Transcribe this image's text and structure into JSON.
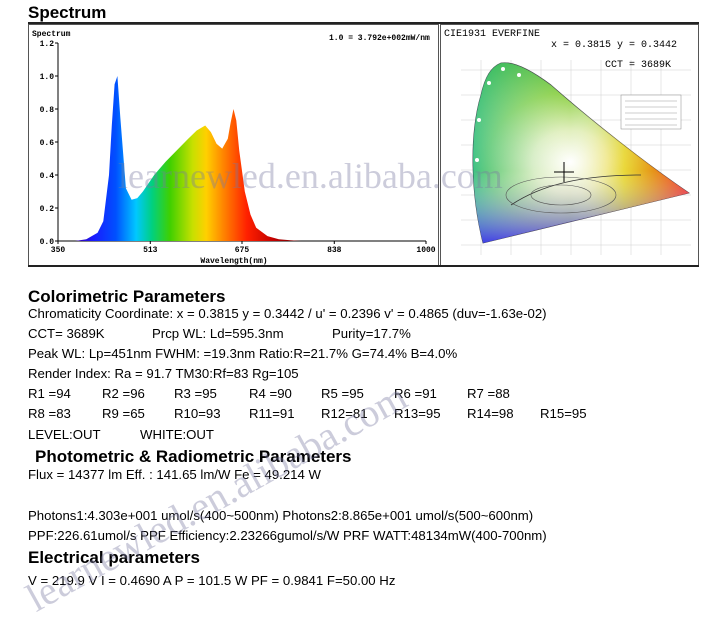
{
  "section_titles": {
    "spectrum": "Spectrum",
    "colorimetric": "Colorimetric Parameters",
    "photometric": "Photometric & Radiometric Parameters",
    "electrical": "Electrical parameters"
  },
  "chart_data": [
    {
      "type": "line",
      "title": "Spectrum",
      "annotation": "1.0 = 3.792e+002mW/nm",
      "xlabel": "Wavelength(nm)",
      "ylabel": "",
      "xlim": [
        350,
        1000
      ],
      "ylim": [
        0,
        1.2
      ],
      "xticks": [
        "350",
        "513",
        "675",
        "838",
        "1000"
      ],
      "yticks": [
        "0.0",
        "0.2",
        "0.4",
        "0.6",
        "0.8",
        "1.0",
        "1.2"
      ],
      "x": [
        380,
        400,
        420,
        430,
        440,
        445,
        450,
        455,
        460,
        470,
        480,
        490,
        500,
        520,
        540,
        560,
        580,
        595,
        610,
        620,
        630,
        640,
        650,
        655,
        660,
        665,
        670,
        680,
        690,
        700,
        720,
        740,
        760,
        780
      ],
      "values": [
        0,
        0.01,
        0.05,
        0.12,
        0.4,
        0.7,
        0.95,
        1.0,
        0.75,
        0.32,
        0.25,
        0.26,
        0.3,
        0.4,
        0.48,
        0.55,
        0.62,
        0.67,
        0.7,
        0.66,
        0.59,
        0.56,
        0.62,
        0.72,
        0.8,
        0.73,
        0.55,
        0.3,
        0.16,
        0.08,
        0.03,
        0.01,
        0.004,
        0
      ]
    },
    {
      "type": "scatter",
      "title": "CIE1931 EVERFINE",
      "readout": "x = 0.3815 y = 0.3442",
      "cct_label": "CCT = 3689K",
      "x": [
        0.3815
      ],
      "values": [
        0.3442
      ]
    }
  ],
  "watermark": "learnewled.en.alibaba.com",
  "colorimetric": {
    "line1": "Chromaticity Coordinate: x = 0.3815 y = 0.3442 / u' = 0.2396 v' = 0.4865 (duv=-1.63e-02)",
    "cct": "CCT=  3689K",
    "prcp": "Prcp WL:   Ld=595.3nm",
    "purity": "Purity=17.7%",
    "line3": "Peak WL:  Lp=451nm  FWHM:   =19.3nm  Ratio:R=21.7% G=74.4% B=4.0%",
    "line4": "Render Index: Ra = 91.7 TM30:Rf=83 Rg=105",
    "r_row1": [
      "R1 =94",
      "R2 =96",
      "R3 =95",
      "R4 =90",
      "R5 =95",
      "R6 =91",
      "R7 =88"
    ],
    "r_row2": [
      "R8 =83",
      "R9 =65",
      "R10=93",
      "R11=91",
      "R12=81",
      "R13=95",
      "R14=98",
      "R15=95"
    ],
    "level": "LEVEL:OUT",
    "white": "WHITE:OUT"
  },
  "photometric": {
    "flux": "Flux  = 14377 lm   Eff. : 141.65 lm/W  Fe  = 49.214 W",
    "photons": "Photons1:4.303e+001 umol/s(400~500nm) Photons2:8.865e+001 umol/s(500~600nm)",
    "ppf": "PPF:226.61umol/s  PPF Efficiency:2.23266gumol/s/W  PRF WATT:48134mW(400-700nm)"
  },
  "electrical": {
    "line": "V = 219.9 V    I = 0.4690 A    P = 101.5 W PF = 0.9841 F=50.00 Hz"
  }
}
